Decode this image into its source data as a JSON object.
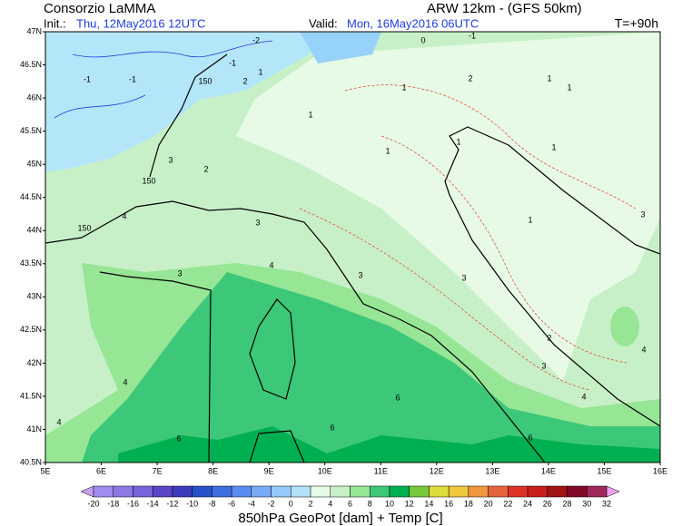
{
  "header": {
    "title": "Consorzio LaMMA",
    "model": "ARW 12km - (GFS 50km)",
    "init_label": "Init.:",
    "init_time": "Thu, 12May2016 12UTC",
    "valid_label": "Valid:",
    "valid_time": "Mon, 16May2016 06UTC",
    "forecast_step": "T=+90h"
  },
  "map": {
    "lat_labels": [
      "47N",
      "46.5N",
      "46N",
      "45.5N",
      "45N",
      "44.5N",
      "44N",
      "43.5N",
      "43N",
      "42.5N",
      "42N",
      "41.5N",
      "41N",
      "40.5N"
    ],
    "lon_labels": [
      "5E",
      "6E",
      "7E",
      "8E",
      "9E",
      "10E",
      "11E",
      "12E",
      "13E",
      "14E",
      "15E",
      "16E"
    ],
    "contour_labels": [
      -2,
      -1,
      -1,
      150,
      -1,
      2,
      1,
      0,
      -1,
      1,
      2,
      1,
      1,
      1,
      1,
      1,
      1,
      2,
      3,
      150,
      150,
      4,
      3,
      3,
      4,
      3,
      3,
      1,
      3,
      4,
      4,
      2,
      3,
      4,
      4,
      6,
      6,
      6,
      6
    ]
  },
  "colorbar": {
    "labels": [
      -20,
      -18,
      -16,
      -14,
      -12,
      -10,
      -8,
      -6,
      -4,
      -2,
      0,
      2,
      4,
      6,
      8,
      10,
      12,
      14,
      16,
      18,
      20,
      22,
      24,
      26,
      28,
      30,
      32
    ],
    "colors": [
      "#a08cf0",
      "#8c78e6",
      "#7864dc",
      "#5a46c8",
      "#3c3cbe",
      "#2850c8",
      "#3c6ede",
      "#5a8cf0",
      "#78aaf5",
      "#96c8fa",
      "#b4e1fa",
      "#e6fae6",
      "#c8f0c8",
      "#96e696",
      "#3cc878",
      "#00b050",
      "#78c83c",
      "#dcdc3c",
      "#f0c83c",
      "#f0963c",
      "#e6643c",
      "#dc3228",
      "#c81e1e",
      "#a01414",
      "#800a28",
      "#a0285a"
    ],
    "under_color": "#c8a0f0",
    "over_color": "#f0a0f0",
    "title": "850hPa GeoPot [dam] + Temp [C]"
  }
}
